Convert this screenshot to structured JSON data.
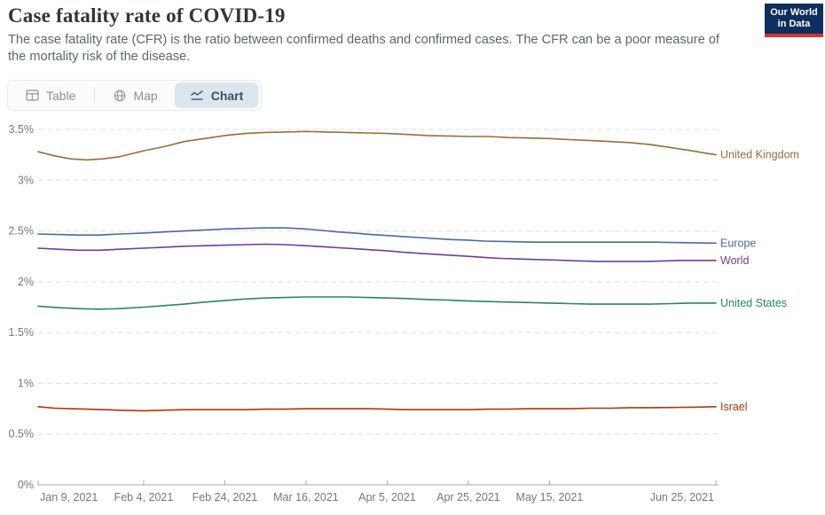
{
  "header": {
    "title": "Case fatality rate of COVID-19",
    "subtitle": "The case fatality rate (CFR) is the ratio between confirmed deaths and confirmed cases. The CFR can be a poor measure of the mortality risk of the disease."
  },
  "logo": {
    "line1": "Our World",
    "line2": "in Data",
    "bg": "#0d2e5e",
    "accent": "#dc2f2f"
  },
  "tabs": [
    {
      "label": "Table",
      "icon": "table-icon",
      "active": false
    },
    {
      "label": "Map",
      "icon": "globe-icon",
      "active": false
    },
    {
      "label": "Chart",
      "icon": "line-chart-icon",
      "active": true
    }
  ],
  "chart_data": {
    "type": "line",
    "title": "Case fatality rate of COVID-19",
    "grid": "dashed-horizontal",
    "legend_position": "right-end-labels",
    "y_axis": {
      "min": 0,
      "max": 3.5,
      "unit": "%",
      "ticks": [
        {
          "value": 0,
          "label": "0%"
        },
        {
          "value": 0.5,
          "label": "0.5%"
        },
        {
          "value": 1,
          "label": "1%"
        },
        {
          "value": 1.5,
          "label": "1.5%"
        },
        {
          "value": 2,
          "label": "2%"
        },
        {
          "value": 2.5,
          "label": "2.5%"
        },
        {
          "value": 3,
          "label": "3%"
        },
        {
          "value": 3.5,
          "label": "3.5%"
        }
      ]
    },
    "x_axis": {
      "min_day": 0,
      "max_day": 167,
      "ticks": [
        {
          "label": "Jan 9, 2021",
          "day": 0
        },
        {
          "label": "Feb 4, 2021",
          "day": 26
        },
        {
          "label": "Feb 24, 2021",
          "day": 46
        },
        {
          "label": "Mar 16, 2021",
          "day": 66
        },
        {
          "label": "Apr 5, 2021",
          "day": 86
        },
        {
          "label": "Apr 25, 2021",
          "day": 106
        },
        {
          "label": "May 15, 2021",
          "day": 126
        },
        {
          "label": "Jun 25, 2021",
          "day": 167
        }
      ]
    },
    "series": [
      {
        "name": "United Kingdom",
        "color": "#996D39",
        "points": [
          [
            0,
            3.28
          ],
          [
            4,
            3.24
          ],
          [
            8,
            3.21
          ],
          [
            12,
            3.2
          ],
          [
            16,
            3.21
          ],
          [
            20,
            3.23
          ],
          [
            26,
            3.29
          ],
          [
            31,
            3.33
          ],
          [
            36,
            3.38
          ],
          [
            41,
            3.41
          ],
          [
            46,
            3.44
          ],
          [
            51,
            3.46
          ],
          [
            56,
            3.47
          ],
          [
            61,
            3.475
          ],
          [
            66,
            3.48
          ],
          [
            71,
            3.475
          ],
          [
            76,
            3.47
          ],
          [
            81,
            3.465
          ],
          [
            86,
            3.46
          ],
          [
            91,
            3.45
          ],
          [
            96,
            3.44
          ],
          [
            101,
            3.435
          ],
          [
            106,
            3.43
          ],
          [
            111,
            3.43
          ],
          [
            116,
            3.42
          ],
          [
            121,
            3.415
          ],
          [
            126,
            3.41
          ],
          [
            131,
            3.4
          ],
          [
            136,
            3.39
          ],
          [
            141,
            3.38
          ],
          [
            146,
            3.37
          ],
          [
            151,
            3.35
          ],
          [
            156,
            3.32
          ],
          [
            161,
            3.29
          ],
          [
            164,
            3.27
          ],
          [
            167,
            3.25
          ]
        ]
      },
      {
        "name": "Europe",
        "color": "#4C6A9C",
        "points": [
          [
            0,
            2.47
          ],
          [
            5,
            2.465
          ],
          [
            10,
            2.46
          ],
          [
            15,
            2.46
          ],
          [
            20,
            2.47
          ],
          [
            26,
            2.48
          ],
          [
            31,
            2.49
          ],
          [
            36,
            2.5
          ],
          [
            41,
            2.51
          ],
          [
            46,
            2.52
          ],
          [
            51,
            2.525
          ],
          [
            56,
            2.53
          ],
          [
            61,
            2.53
          ],
          [
            66,
            2.52
          ],
          [
            70,
            2.505
          ],
          [
            74,
            2.49
          ],
          [
            78,
            2.48
          ],
          [
            82,
            2.465
          ],
          [
            86,
            2.455
          ],
          [
            90,
            2.445
          ],
          [
            94,
            2.435
          ],
          [
            98,
            2.425
          ],
          [
            102,
            2.415
          ],
          [
            106,
            2.41
          ],
          [
            110,
            2.4
          ],
          [
            116,
            2.395
          ],
          [
            122,
            2.39
          ],
          [
            128,
            2.39
          ],
          [
            134,
            2.39
          ],
          [
            140,
            2.39
          ],
          [
            146,
            2.39
          ],
          [
            152,
            2.39
          ],
          [
            158,
            2.385
          ],
          [
            167,
            2.38
          ]
        ]
      },
      {
        "name": "World",
        "color": "#6D3E91",
        "points": [
          [
            0,
            2.33
          ],
          [
            5,
            2.32
          ],
          [
            10,
            2.31
          ],
          [
            15,
            2.31
          ],
          [
            20,
            2.32
          ],
          [
            26,
            2.33
          ],
          [
            31,
            2.34
          ],
          [
            36,
            2.35
          ],
          [
            41,
            2.355
          ],
          [
            46,
            2.36
          ],
          [
            51,
            2.365
          ],
          [
            56,
            2.37
          ],
          [
            61,
            2.365
          ],
          [
            66,
            2.355
          ],
          [
            70,
            2.345
          ],
          [
            74,
            2.335
          ],
          [
            78,
            2.325
          ],
          [
            82,
            2.315
          ],
          [
            86,
            2.305
          ],
          [
            90,
            2.29
          ],
          [
            94,
            2.28
          ],
          [
            98,
            2.27
          ],
          [
            102,
            2.26
          ],
          [
            106,
            2.25
          ],
          [
            110,
            2.24
          ],
          [
            114,
            2.23
          ],
          [
            118,
            2.225
          ],
          [
            122,
            2.22
          ],
          [
            126,
            2.215
          ],
          [
            130,
            2.21
          ],
          [
            134,
            2.205
          ],
          [
            138,
            2.2
          ],
          [
            142,
            2.2
          ],
          [
            146,
            2.2
          ],
          [
            150,
            2.2
          ],
          [
            154,
            2.205
          ],
          [
            158,
            2.21
          ],
          [
            162,
            2.21
          ],
          [
            167,
            2.21
          ]
        ]
      },
      {
        "name": "United States",
        "color": "#2C8465",
        "points": [
          [
            0,
            1.76
          ],
          [
            5,
            1.745
          ],
          [
            10,
            1.735
          ],
          [
            15,
            1.73
          ],
          [
            20,
            1.735
          ],
          [
            26,
            1.75
          ],
          [
            31,
            1.765
          ],
          [
            36,
            1.78
          ],
          [
            41,
            1.8
          ],
          [
            46,
            1.815
          ],
          [
            51,
            1.83
          ],
          [
            56,
            1.84
          ],
          [
            61,
            1.845
          ],
          [
            66,
            1.85
          ],
          [
            71,
            1.85
          ],
          [
            76,
            1.85
          ],
          [
            81,
            1.845
          ],
          [
            86,
            1.84
          ],
          [
            91,
            1.835
          ],
          [
            96,
            1.825
          ],
          [
            101,
            1.82
          ],
          [
            106,
            1.81
          ],
          [
            111,
            1.805
          ],
          [
            116,
            1.8
          ],
          [
            121,
            1.795
          ],
          [
            126,
            1.79
          ],
          [
            131,
            1.785
          ],
          [
            136,
            1.78
          ],
          [
            141,
            1.78
          ],
          [
            146,
            1.78
          ],
          [
            151,
            1.78
          ],
          [
            156,
            1.785
          ],
          [
            161,
            1.79
          ],
          [
            167,
            1.79
          ]
        ]
      },
      {
        "name": "Israel",
        "color": "#B13507",
        "points": [
          [
            0,
            0.77
          ],
          [
            4,
            0.755
          ],
          [
            8,
            0.75
          ],
          [
            12,
            0.745
          ],
          [
            16,
            0.74
          ],
          [
            20,
            0.735
          ],
          [
            26,
            0.73
          ],
          [
            31,
            0.735
          ],
          [
            36,
            0.74
          ],
          [
            41,
            0.74
          ],
          [
            46,
            0.74
          ],
          [
            51,
            0.74
          ],
          [
            56,
            0.745
          ],
          [
            61,
            0.745
          ],
          [
            66,
            0.75
          ],
          [
            71,
            0.75
          ],
          [
            76,
            0.75
          ],
          [
            81,
            0.75
          ],
          [
            86,
            0.745
          ],
          [
            91,
            0.74
          ],
          [
            96,
            0.74
          ],
          [
            101,
            0.74
          ],
          [
            106,
            0.74
          ],
          [
            111,
            0.745
          ],
          [
            116,
            0.745
          ],
          [
            121,
            0.75
          ],
          [
            126,
            0.75
          ],
          [
            131,
            0.75
          ],
          [
            136,
            0.755
          ],
          [
            141,
            0.755
          ],
          [
            146,
            0.76
          ],
          [
            151,
            0.76
          ],
          [
            156,
            0.762
          ],
          [
            161,
            0.765
          ],
          [
            167,
            0.77
          ]
        ]
      }
    ],
    "style": {
      "gridline_color": "#dddddd",
      "axis_line_color": "#a5a8ac",
      "tick_label_color": "#74787d",
      "line_width": 1.6
    }
  }
}
